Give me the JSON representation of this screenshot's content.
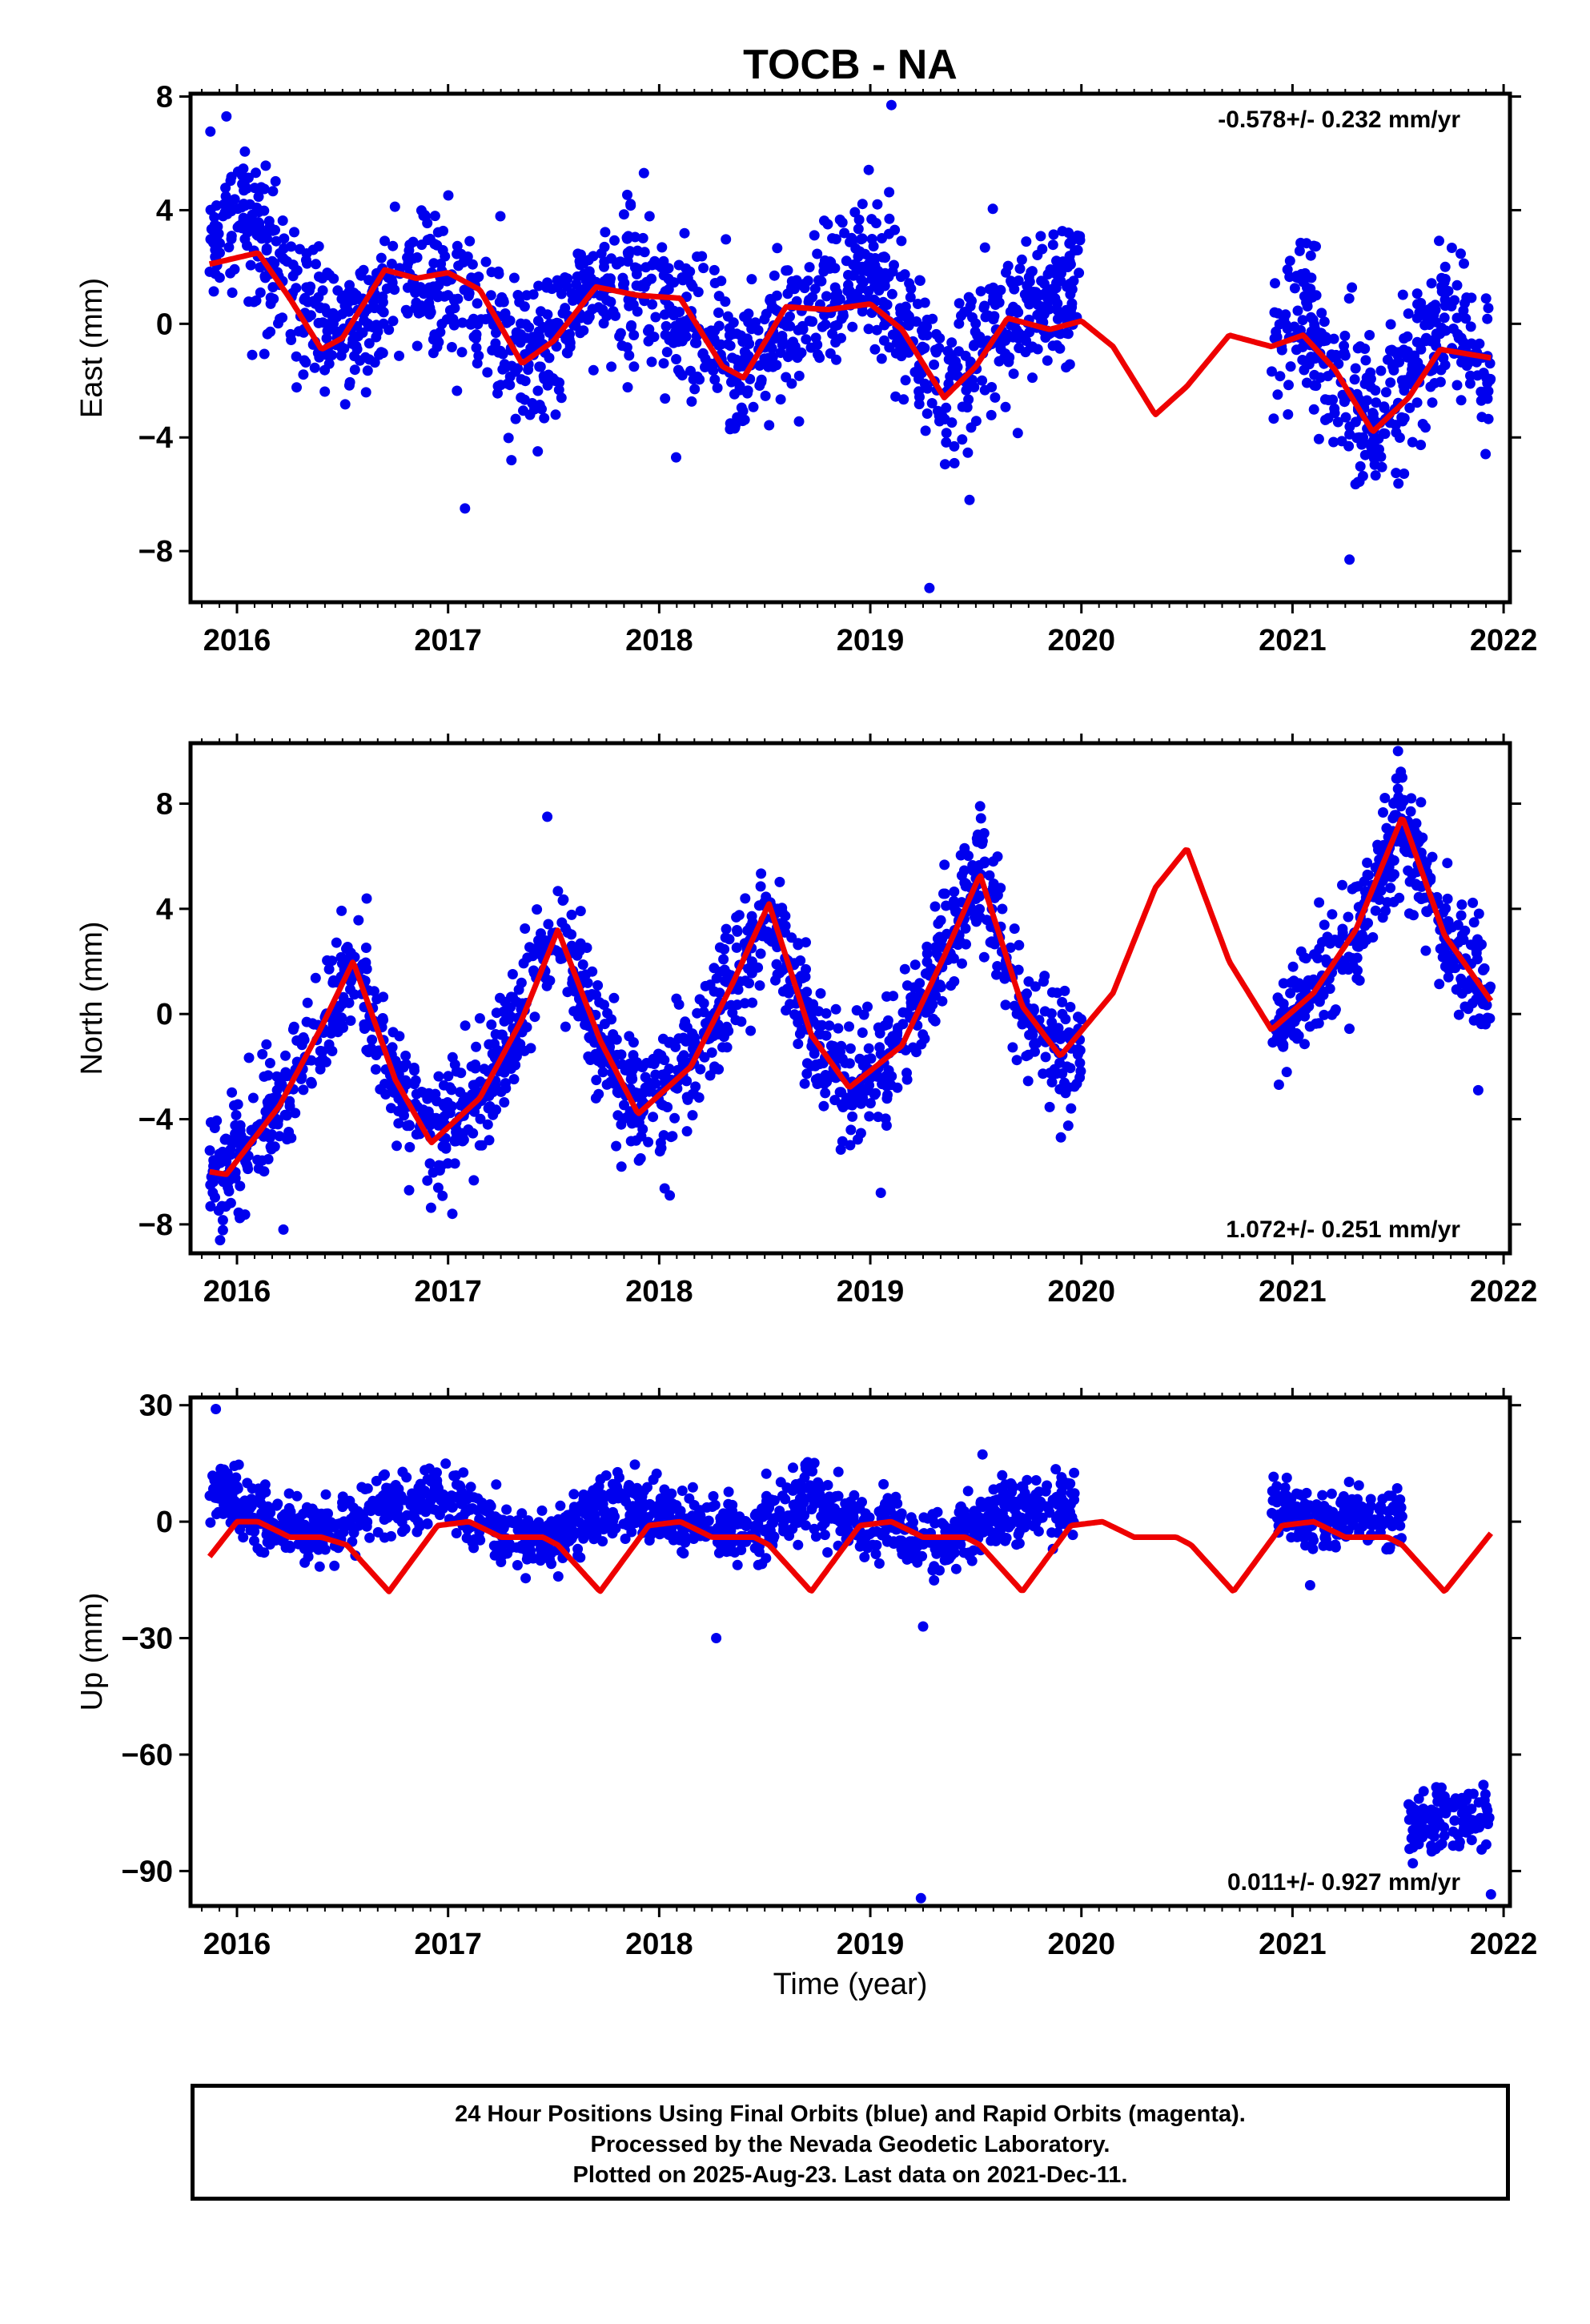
{
  "title": "TOCB - NA",
  "xlabel": "Time (year)",
  "caption": {
    "line1": "24 Hour Positions Using Final Orbits (blue) and Rapid Orbits (magenta).",
    "line2": "Processed by the Nevada Geodetic Laboratory.",
    "line3": "Plotted on 2025-Aug-23. Last data on 2021-Dec-11."
  },
  "colors": {
    "points": "#0000ee",
    "model": "#ee0000",
    "frame": "#000000"
  },
  "chart_data": [
    {
      "type": "scatter",
      "ylabel": "East (mm)",
      "rate": "-0.578+/- 0.232 mm/yr",
      "rate_position": "top-right",
      "xlim": [
        2015.78,
        2022.03
      ],
      "ylim": [
        -9.8,
        8.1
      ],
      "xticks": [
        "2016",
        "2017",
        "2018",
        "2019",
        "2020",
        "2021",
        "2022"
      ],
      "yticks": [
        "8",
        "4",
        "0",
        "−4",
        "−8"
      ],
      "ytick_values": [
        8,
        4,
        0,
        -4,
        -8
      ],
      "data_span": [
        2015.87,
        2021.94
      ],
      "gap": [
        2020.0,
        2020.9
      ],
      "model_curve": {
        "x": [
          2015.87,
          2016.1,
          2016.25,
          2016.4,
          2016.5,
          2016.7,
          2016.85,
          2017.0,
          2017.15,
          2017.35,
          2017.5,
          2017.7,
          2017.9,
          2018.1,
          2018.3,
          2018.4,
          2018.6,
          2018.8,
          2019.0,
          2019.15,
          2019.35,
          2019.5,
          2019.65,
          2019.85,
          2020.0,
          2020.15,
          2020.35,
          2020.5,
          2020.7,
          2020.9,
          2021.05,
          2021.2,
          2021.38,
          2021.55,
          2021.7,
          2021.94
        ],
        "y": [
          2.1,
          2.5,
          0.9,
          -0.9,
          -0.5,
          1.9,
          1.6,
          1.8,
          1.2,
          -1.4,
          -0.6,
          1.3,
          1.0,
          0.9,
          -1.5,
          -1.9,
          0.6,
          0.5,
          0.7,
          -0.2,
          -2.6,
          -1.5,
          0.2,
          -0.2,
          0.1,
          -0.8,
          -3.2,
          -2.2,
          -0.4,
          -0.8,
          -0.4,
          -1.6,
          -3.8,
          -2.6,
          -0.9,
          -1.2
        ]
      },
      "points_trend": {
        "x": [
          2015.87,
          2016.0,
          2016.3,
          2016.5,
          2016.8,
          2017.0,
          2017.4,
          2017.7,
          2018.0,
          2018.4,
          2018.8,
          2019.0,
          2019.35,
          2019.7,
          2019.97,
          2020.9,
          2021.05,
          2021.2,
          2021.4,
          2021.6,
          2021.75,
          2021.94
        ],
        "y": [
          3.2,
          4.0,
          0.8,
          -0.6,
          1.5,
          1.4,
          -1.5,
          1.2,
          1.0,
          -2.0,
          1.4,
          2.2,
          -2.5,
          0.5,
          1.4,
          -0.5,
          0.5,
          -1.8,
          -3.8,
          -1.0,
          0.3,
          -2.2
        ]
      },
      "points_scatter_mm": 1.3,
      "outliers": [
        {
          "x": 2015.95,
          "y": 7.3
        },
        {
          "x": 2019.1,
          "y": 7.7
        },
        {
          "x": 2017.08,
          "y": -6.5
        },
        {
          "x": 2019.28,
          "y": -9.3
        },
        {
          "x": 2019.47,
          "y": -6.2
        },
        {
          "x": 2021.27,
          "y": -8.3
        },
        {
          "x": 2017.3,
          "y": -4.8
        },
        {
          "x": 2018.08,
          "y": -4.7
        }
      ]
    },
    {
      "type": "scatter",
      "ylabel": "North (mm)",
      "rate": "1.072+/- 0.251 mm/yr",
      "rate_position": "bottom-right",
      "xlim": [
        2015.78,
        2022.03
      ],
      "ylim": [
        -9.1,
        10.3
      ],
      "xticks": [
        "2016",
        "2017",
        "2018",
        "2019",
        "2020",
        "2021",
        "2022"
      ],
      "yticks": [
        "8",
        "4",
        "0",
        "−4",
        "−8"
      ],
      "ytick_values": [
        8,
        4,
        0,
        -4,
        -8
      ],
      "data_span": [
        2015.87,
        2021.94
      ],
      "gap": [
        2020.0,
        2020.9
      ],
      "model_curve": {
        "x": [
          2015.87,
          2015.95,
          2016.2,
          2016.4,
          2016.55,
          2016.75,
          2016.92,
          2017.15,
          2017.35,
          2017.52,
          2017.72,
          2017.9,
          2018.15,
          2018.35,
          2018.52,
          2018.72,
          2018.9,
          2019.15,
          2019.35,
          2019.52,
          2019.72,
          2019.9,
          2020.15,
          2020.35,
          2020.5,
          2020.7,
          2020.9,
          2021.1,
          2021.3,
          2021.52,
          2021.72,
          2021.94
        ],
        "y": [
          -6.0,
          -6.1,
          -3.5,
          -0.5,
          2.0,
          -2.5,
          -4.9,
          -3.2,
          -0.2,
          3.2,
          -1.0,
          -3.8,
          -2.0,
          1.2,
          4.2,
          -0.8,
          -2.8,
          -1.2,
          2.2,
          5.3,
          0.3,
          -1.6,
          0.8,
          4.8,
          6.3,
          2.0,
          -0.6,
          0.8,
          3.2,
          7.5,
          3.0,
          0.5
        ]
      },
      "points_trend": {
        "x": [
          2015.87,
          2016.0,
          2016.2,
          2016.4,
          2016.55,
          2016.75,
          2016.92,
          2017.15,
          2017.35,
          2017.52,
          2017.72,
          2017.9,
          2018.15,
          2018.35,
          2018.52,
          2018.72,
          2018.9,
          2019.15,
          2019.35,
          2019.52,
          2019.72,
          2019.97,
          2020.9,
          2021.1,
          2021.3,
          2021.52,
          2021.72,
          2021.94
        ],
        "y": [
          -6.0,
          -5.5,
          -3.5,
          -0.5,
          2.3,
          -2.5,
          -4.5,
          -3.0,
          0.0,
          3.2,
          -1.0,
          -3.8,
          -2.0,
          1.2,
          4.2,
          -0.8,
          -2.8,
          -1.2,
          2.2,
          5.3,
          0.3,
          -2.0,
          -0.8,
          0.8,
          3.2,
          7.5,
          3.0,
          0.8
        ]
      },
      "points_scatter_mm": 1.1,
      "outliers": [
        {
          "x": 2015.92,
          "y": -8.6
        },
        {
          "x": 2016.22,
          "y": -8.2
        },
        {
          "x": 2017.02,
          "y": -7.6
        },
        {
          "x": 2018.05,
          "y": -6.9
        },
        {
          "x": 2019.05,
          "y": -6.8
        },
        {
          "x": 2017.47,
          "y": 7.5
        },
        {
          "x": 2021.5,
          "y": 10.0
        },
        {
          "x": 2019.52,
          "y": 7.9
        },
        {
          "x": 2021.88,
          "y": -2.9
        }
      ]
    },
    {
      "type": "scatter",
      "ylabel": "Up (mm)",
      "rate": "0.011+/- 0.927 mm/yr",
      "rate_position": "bottom-right",
      "xlim": [
        2015.78,
        2022.03
      ],
      "ylim": [
        -99,
        32
      ],
      "xticks": [
        "2016",
        "2017",
        "2018",
        "2019",
        "2020",
        "2021",
        "2022"
      ],
      "yticks": [
        "30",
        "0",
        "−30",
        "−60",
        "−90"
      ],
      "ytick_values": [
        30,
        0,
        -30,
        -60,
        -90
      ],
      "data_span": [
        2015.87,
        2021.94
      ],
      "gap": [
        2020.0,
        2020.9
      ],
      "model_curve": {
        "x": [
          2015.87,
          2016.0,
          2016.1,
          2016.25,
          2016.4,
          2016.52,
          2016.72,
          2016.95,
          2017.1,
          2017.25,
          2017.45,
          2017.52,
          2017.72,
          2017.95,
          2018.1,
          2018.25,
          2018.45,
          2018.52,
          2018.72,
          2018.95,
          2019.1,
          2019.25,
          2019.45,
          2019.52,
          2019.72,
          2019.95,
          2020.1,
          2020.25,
          2020.45,
          2020.52,
          2020.72,
          2020.95,
          2021.1,
          2021.25,
          2021.45,
          2021.52,
          2021.72,
          2021.94
        ],
        "y": [
          -9,
          0,
          0,
          -4,
          -4,
          -6,
          -18,
          -1,
          0,
          -4,
          -4,
          -6,
          -18,
          -1,
          0,
          -4,
          -4,
          -6,
          -18,
          -1,
          0,
          -4,
          -4,
          -6,
          -18,
          -1,
          0,
          -4,
          -4,
          -6,
          -18,
          -1,
          0,
          -4,
          -4,
          -6,
          -18,
          -3
        ]
      },
      "clusters": [
        {
          "x0": 2015.87,
          "x1": 2019.97,
          "center_trend": {
            "x": [
              2015.87,
              2016.1,
              2016.4,
              2016.7,
              2017.0,
              2017.3,
              2017.5,
              2017.8,
              2018.1,
              2018.4,
              2018.7,
              2019.0,
              2019.3,
              2019.6,
              2019.97
            ],
            "y": [
              9,
              0,
              -3,
              5,
              6,
              -4,
              -5,
              6,
              0,
              -2,
              6,
              -1,
              -6,
              2,
              5
            ]
          },
          "spread_mm": 4
        },
        {
          "x0": 2020.9,
          "x1": 2021.52,
          "center_trend": {
            "x": [
              2020.9,
              2021.1,
              2021.3,
              2021.52
            ],
            "y": [
              5,
              0,
              1,
              1
            ]
          },
          "spread_mm": 3.5
        },
        {
          "x0": 2021.55,
          "x1": 2021.94,
          "center_trend": {
            "x": [
              2021.55,
              2021.75,
              2021.94
            ],
            "y": [
              -79,
              -75,
              -77
            ]
          },
          "spread_mm": 4
        }
      ],
      "outliers": [
        {
          "x": 2015.9,
          "y": 29
        },
        {
          "x": 2018.27,
          "y": -30
        },
        {
          "x": 2019.25,
          "y": -27
        },
        {
          "x": 2019.24,
          "y": -97
        },
        {
          "x": 2021.94,
          "y": -96
        },
        {
          "x": 2021.57,
          "y": -88
        }
      ]
    }
  ]
}
